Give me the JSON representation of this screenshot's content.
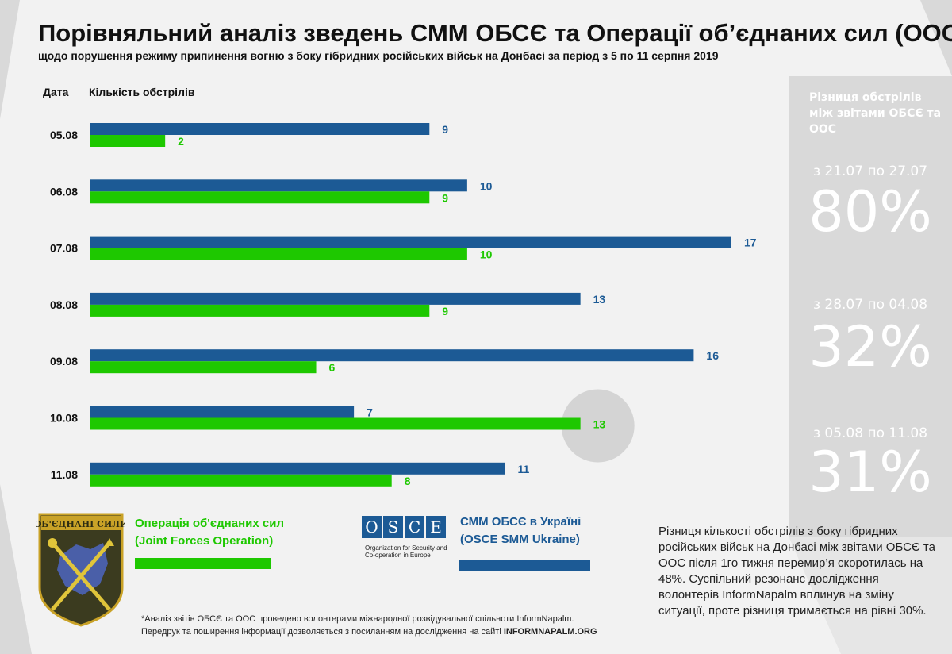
{
  "title": "Порівняльний аналіз зведень СММ ОБСЄ та Операції об’єднаних сил (ООС)",
  "subtitle": "щодо порушення режиму припинення вогню з боку гібридних російських військ на Донбасі за період з 5 по 11 серпня 2019",
  "colors": {
    "blue": "#1c5a95",
    "green": "#1ec800",
    "panel": "#d9d9d9",
    "bg": "#f2f2f2"
  },
  "chart_data": {
    "type": "bar",
    "orientation": "horizontal",
    "xlabel": "Дата",
    "ylabel": "Кількість обстрілів",
    "categories": [
      "05.08",
      "06.08",
      "07.08",
      "08.08",
      "09.08",
      "10.08",
      "11.08"
    ],
    "series": [
      {
        "name": "СММ ОБСЄ в Україні (OSCE SMM Ukraine)",
        "color": "#1c5a95",
        "values": [
          9,
          10,
          17,
          13,
          16,
          7,
          11
        ]
      },
      {
        "name": "Операція об'єднаних сил (Joint Forces Operation)",
        "color": "#1ec800",
        "values": [
          2,
          9,
          10,
          9,
          6,
          13,
          8
        ]
      }
    ],
    "xlim": [
      0,
      17
    ],
    "highlight_category": "10.08"
  },
  "panel": {
    "heading": "Різниця обстрілів між звітами ОБСЄ та ООС",
    "items": [
      {
        "period": "з 21.07 по 27.07",
        "value": "80%"
      },
      {
        "period": "з 28.07 по 04.08",
        "value": "32%"
      },
      {
        "period": "з 05.08 по 11.08",
        "value": "31%"
      }
    ]
  },
  "legend": {
    "jfo_line1": "Операція об'єднаних сил",
    "jfo_line2": "(Joint Forces Operation)",
    "osce_line1": "СММ ОБСЄ в Україні",
    "osce_line2": "(OSCE SMM Ukraine)",
    "emblem_text": "ОБ'ЄДНАНІ СИЛИ",
    "osce_letters": [
      "O",
      "S",
      "C",
      "E"
    ],
    "osce_sub1": "Organization for Security and",
    "osce_sub2": "Co-operation in Europe"
  },
  "description": "Різниця кількості обстрілів з боку гібридних російських військ на Донбасі між звітами ОБСЄ та ООС після 1го тижня перемир’я скоротилась на 48%. Суспільний резонанс дослідження волонтерів InformNapalm вплинув на зміну ситуації, проте різниця тримається на рівні 30%.",
  "footnote": {
    "line1": "*Аналіз звітів ОБСЄ та ООС проведено волонтерами міжнародної розвідувальної спільноти InformNapalm.",
    "line2_prefix": "Передрук та поширення інформації дозволяється з посиланням на дослідження на сайті ",
    "line2_site": "INFORMNAPALM.ORG"
  }
}
